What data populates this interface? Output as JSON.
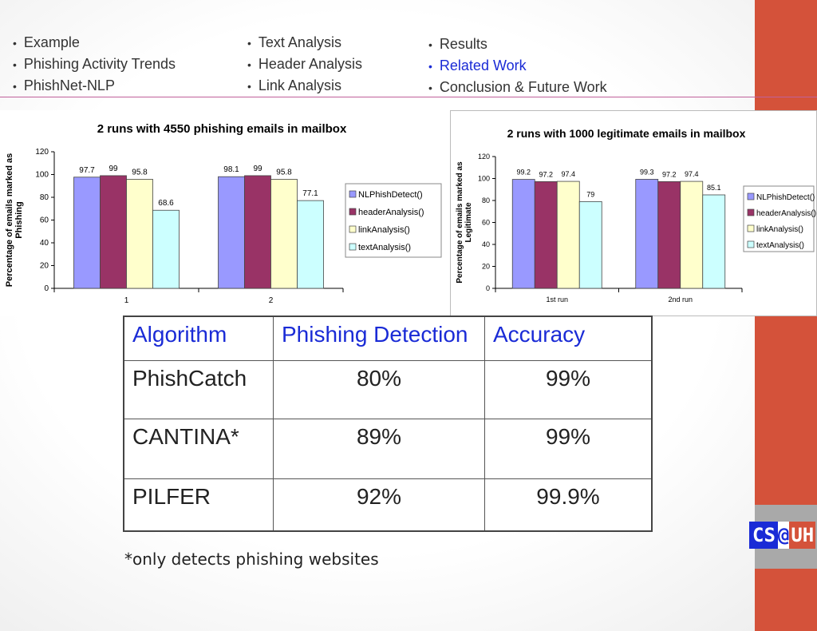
{
  "nav": {
    "col1": [
      "Example",
      "Phishing Activity Trends",
      "PhishNet-NLP"
    ],
    "col2": [
      "Text Analysis",
      "Header Analysis",
      "Link Analysis"
    ],
    "col3": [
      "Results",
      "Related Work",
      "Conclusion & Future Work"
    ],
    "active": "Related Work"
  },
  "logo": {
    "cs": "CS",
    "at": "@",
    "uh": "UH"
  },
  "colors": {
    "accent": "#1a2bd6",
    "sidebar": "#d4523a",
    "s1": "#9999ff",
    "s2": "#993366",
    "s3": "#ffffcc",
    "s4": "#ccffff"
  },
  "chart_data": [
    {
      "type": "bar",
      "title": "2 runs with 4550 phishing emails in mailbox",
      "ylabel": "Percentage of emails marked as Phishing",
      "xlabel": "",
      "categories": [
        "1",
        "2"
      ],
      "ylim": [
        0,
        120
      ],
      "yticks": [
        0,
        20,
        40,
        60,
        80,
        100,
        120
      ],
      "legend": "right",
      "series": [
        {
          "name": "NLPhishDetect()",
          "values": [
            97.7,
            98.1
          ]
        },
        {
          "name": "headerAnalysis()",
          "values": [
            99,
            99
          ]
        },
        {
          "name": "linkAnalysis()",
          "values": [
            95.8,
            95.8
          ]
        },
        {
          "name": "textAnalysis()",
          "values": [
            68.6,
            77.1
          ]
        }
      ]
    },
    {
      "type": "bar",
      "title": "2 runs with 1000 legitimate emails in mailbox",
      "ylabel": "Percentage of emails marked as Legitimate",
      "xlabel": "",
      "categories": [
        "1st run",
        "2nd run"
      ],
      "ylim": [
        0,
        120
      ],
      "yticks": [
        0,
        20,
        40,
        60,
        80,
        100,
        120
      ],
      "legend": "right",
      "series": [
        {
          "name": "NLPhishDetect()",
          "values": [
            99.2,
            99.3
          ]
        },
        {
          "name": "headerAnalysis()",
          "values": [
            97.2,
            97.2
          ]
        },
        {
          "name": "linkAnalysis()",
          "values": [
            97.4,
            97.4
          ]
        },
        {
          "name": "textAnalysis()",
          "values": [
            79,
            85.1
          ]
        }
      ]
    }
  ],
  "table": {
    "headers": [
      "Algorithm",
      "Phishing Detection",
      "Accuracy"
    ],
    "rows": [
      [
        "PhishCatch",
        "80%",
        "99%"
      ],
      [
        "CANTINA*",
        "89%",
        "99%"
      ],
      [
        "PILFER",
        "92%",
        "99.9%"
      ]
    ]
  },
  "footnote": "*only detects phishing websites"
}
